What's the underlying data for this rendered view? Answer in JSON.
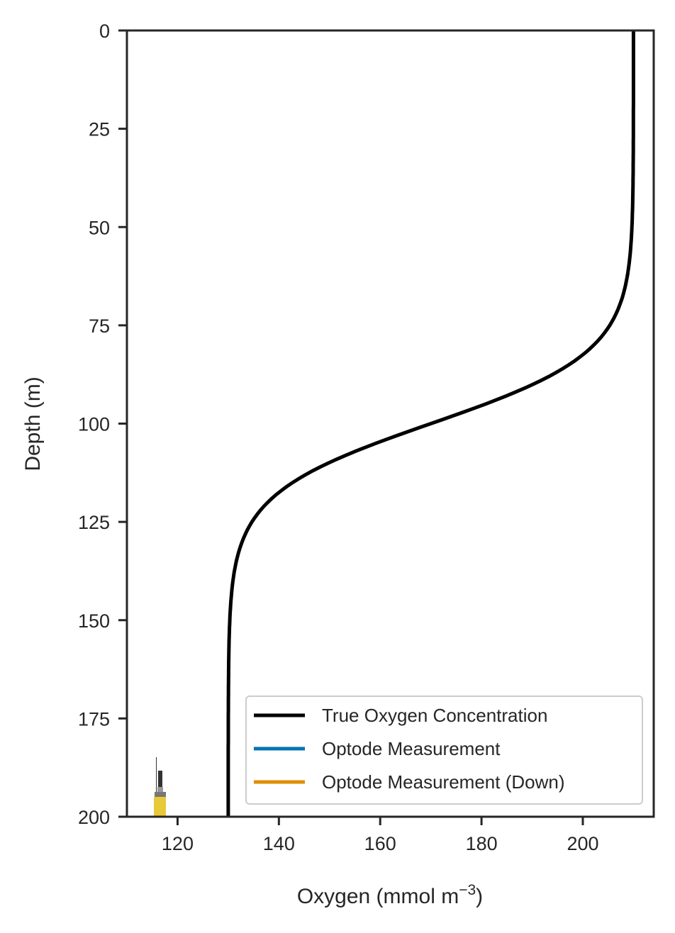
{
  "chart_data": {
    "type": "line",
    "title": "",
    "xlabel": "Oxygen (mmol m",
    "xlabel_sup": "−3",
    "xlabel_end": ")",
    "ylabel": "Depth (m)",
    "xlim": [
      110,
      214
    ],
    "ylim": [
      200,
      0
    ],
    "y_inverted": true,
    "grid": false,
    "xticks": [
      120,
      140,
      160,
      180,
      200
    ],
    "yticks": [
      0,
      25,
      50,
      75,
      100,
      125,
      150,
      175,
      200
    ],
    "series": [
      {
        "name": "True Oxygen Concentration",
        "color": "#000000",
        "model": "tanh profile",
        "surface_value": 210,
        "deep_value": 130,
        "mid_depth": 100,
        "scale_depth": 18,
        "sample_points": [
          [
            210,
            0
          ],
          [
            210,
            25
          ],
          [
            209.6,
            50
          ],
          [
            205.6,
            75
          ],
          [
            170,
            100
          ],
          [
            134.4,
            125
          ],
          [
            130.4,
            150
          ],
          [
            130,
            175
          ],
          [
            130,
            200
          ]
        ]
      },
      {
        "name": "Optode Measurement",
        "color": "#0173b2",
        "values": []
      },
      {
        "name": "Optode Measurement (Down)",
        "color": "#de8f05",
        "values": []
      }
    ],
    "legend_position": "lower-right",
    "annotations": [
      {
        "type": "float-icon",
        "x": 116,
        "depth": 200
      }
    ]
  }
}
